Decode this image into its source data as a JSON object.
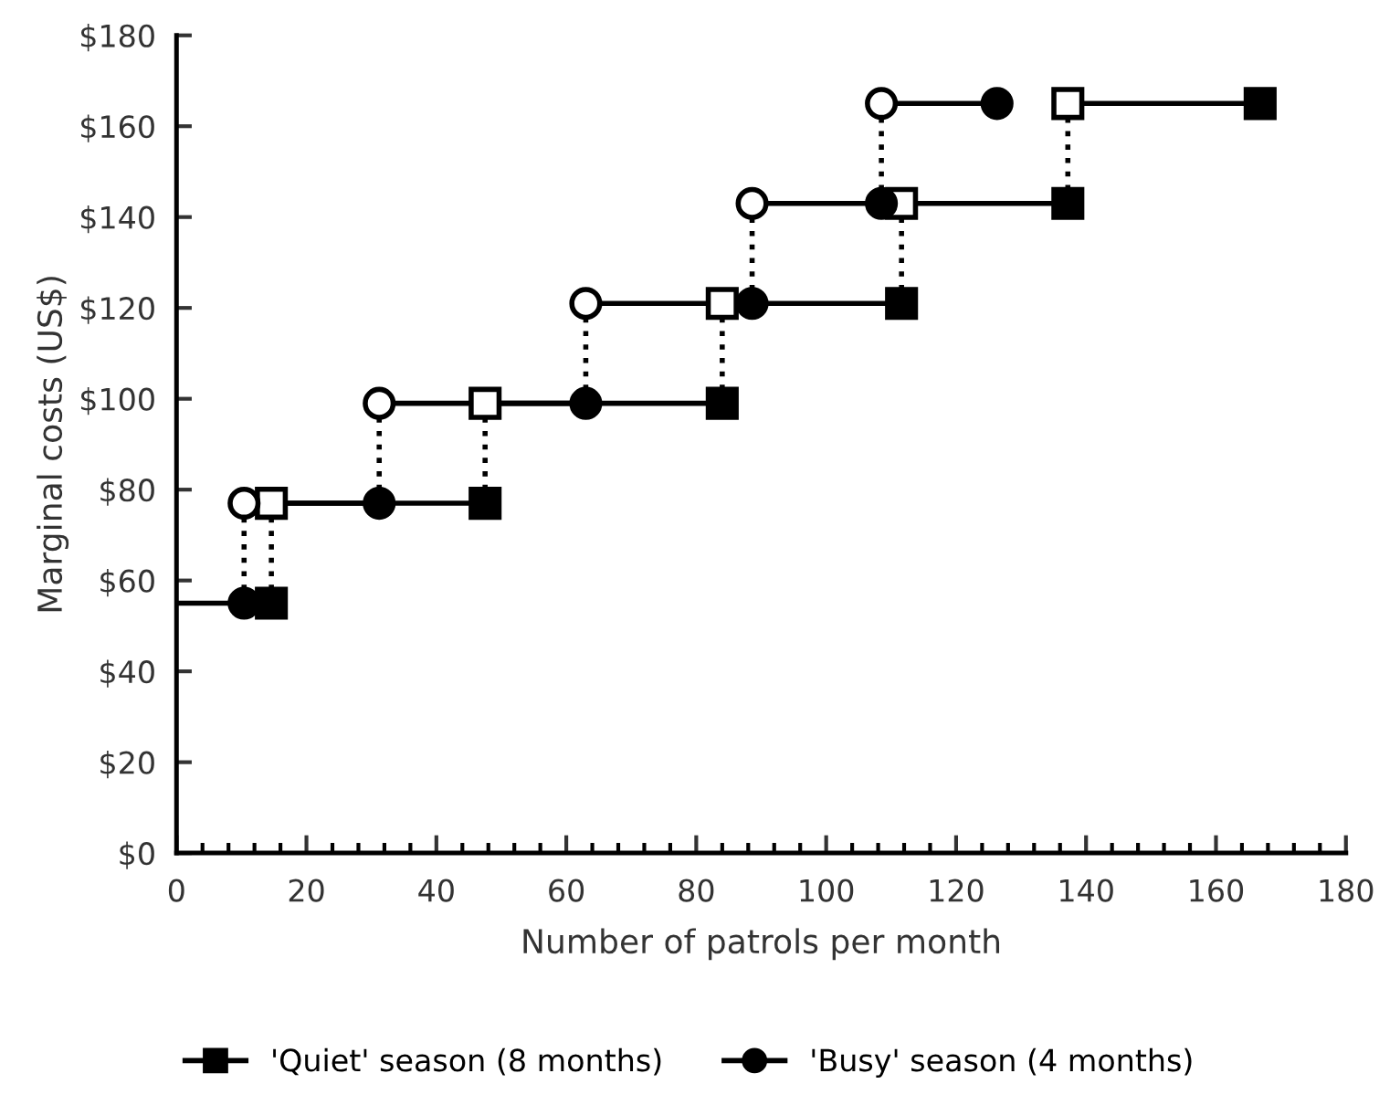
{
  "chart_data": {
    "type": "line",
    "xlabel": "Number of patrols per month",
    "ylabel": "Marginal costs (US$)",
    "series": [
      {
        "name": "'Quiet' season (8 months)",
        "color": "#000000",
        "marker": "square",
        "x": [
          14.6,
          null,
          14.6,
          47.5,
          null,
          47.5,
          84,
          null,
          84,
          111.6,
          null,
          111.6,
          137.2,
          null,
          137.2,
          166.8
        ],
        "values": [
          55,
          null,
          77,
          77,
          null,
          99,
          99,
          null,
          121,
          121,
          null,
          143,
          143,
          null,
          165,
          165
        ],
        "colors": [
          "#000000",
          null,
          "#ffffff",
          "#000000",
          null,
          "#ffffff",
          "#000000",
          null,
          "#ffffff",
          "#000000",
          null,
          "#ffffff",
          "#000000",
          null,
          "#ffffff",
          "#000000"
        ]
      },
      {
        "name": "'Busy' season (4 months)",
        "color": "#000000",
        "marker": "circle",
        "x": [
          10.4,
          null,
          10.4,
          31.2,
          null,
          31.2,
          63,
          null,
          63,
          88.6,
          null,
          88.6,
          108.5,
          null,
          108.5,
          126.3
        ],
        "values": [
          55,
          null,
          77,
          77,
          null,
          99,
          99,
          null,
          121,
          121,
          null,
          143,
          143,
          null,
          165,
          165
        ],
        "colors": [
          "#000000",
          null,
          "#ffffff",
          "#000000",
          null,
          "#ffffff",
          "#000000",
          null,
          "#ffffff",
          "#000000",
          null,
          "#ffffff",
          "#000000",
          null,
          "#ffffff",
          "#000000"
        ]
      },
      {
        "color": "#000000",
        "marker": "none",
        "x": [
          0,
          14.6
        ],
        "values": [
          55,
          55
        ]
      }
    ],
    "xlim": [
      0,
      180
    ],
    "xticks": [
      0,
      20,
      40,
      60,
      80,
      100,
      120,
      140,
      160,
      180
    ],
    "ylim": [
      0,
      180
    ],
    "yticks": [
      {
        "value": 0,
        "label": "$0"
      },
      {
        "value": 20,
        "label": "$20"
      },
      {
        "value": 40,
        "label": "$40"
      },
      {
        "value": 60,
        "label": "$60"
      },
      {
        "value": 80,
        "label": "$80"
      },
      {
        "value": 100,
        "label": "$100"
      },
      {
        "value": 120,
        "label": "$120"
      },
      {
        "value": 140,
        "label": "$140"
      },
      {
        "value": 160,
        "label": "$160"
      },
      {
        "value": 180,
        "label": "$180"
      }
    ],
    "grid": false,
    "legend": "bottom",
    "line_style": "solid"
  }
}
